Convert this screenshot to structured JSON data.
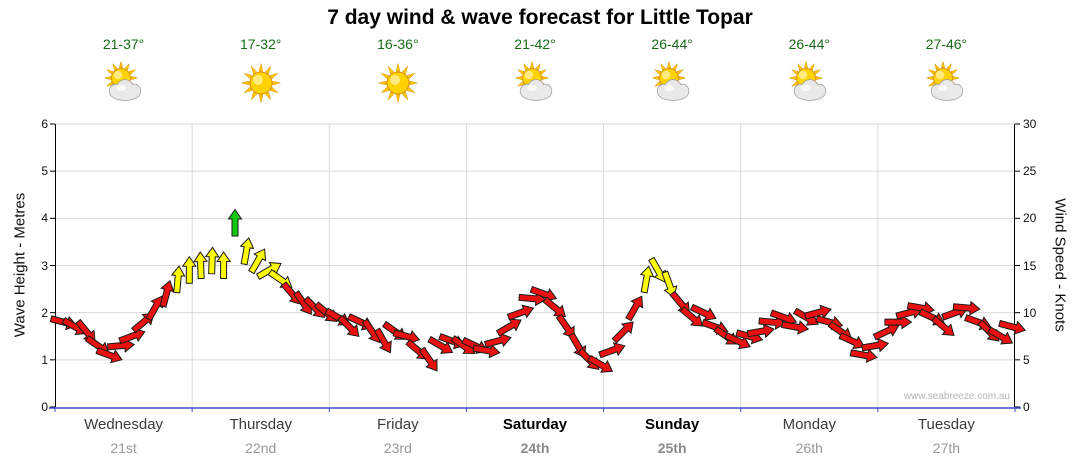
{
  "watermark": "www.seabreeze.com.au",
  "colors": {
    "background": "#ffffff",
    "title_text": "#000000",
    "temperature_text": "#176b17",
    "day_label_text": "#3c3c3c",
    "weekend_label_text": "#000000",
    "date_label_text": "#979797",
    "axis_text": "#111111",
    "gridline": "#d9d9d9",
    "axis_line": "#000000",
    "baseline": "#3d49cf",
    "watermark_text": "#b5b5b5",
    "sun": "#ffd200",
    "sun_rays": "#ffc400",
    "cloud": "#e9e9e9",
    "cloud_outline": "#9a9a9a"
  },
  "chart_data": {
    "type": "scatter",
    "marker": "wind-arrow",
    "title": "7 day wind & wave forecast for Little Topar",
    "xlabel": "",
    "ylabel_left": "Wave Height - Metres",
    "ylabel_right": "Wind Speed - Knots",
    "ylim_left": [
      0,
      6
    ],
    "ylim_right": [
      0,
      30
    ],
    "yticks_left": [
      0,
      1,
      2,
      3,
      4,
      5,
      6
    ],
    "yticks_right": [
      0,
      5,
      10,
      15,
      20,
      25,
      30
    ],
    "grid": true,
    "legend": "none",
    "hours": [
      1,
      3,
      5,
      7,
      9,
      11,
      13,
      15,
      17,
      19,
      21,
      23
    ],
    "speed_colors": {
      "red": "#e81010",
      "yellow": "#ffff00",
      "green": "#12c912",
      "yellow_from_knots": 13,
      "green_from_knots": 18
    },
    "days": [
      {
        "label": "Wednesday",
        "date": "21st",
        "temps": "21-37°",
        "icon": "sun-cloud",
        "weekend": false,
        "wind_knots": [
          9,
          8.5,
          8,
          6.5,
          5.5,
          6.5,
          7.5,
          9,
          10.5,
          12,
          13.5,
          14.5
        ],
        "wind_dir_deg": [
          15,
          30,
          50,
          35,
          20,
          -5,
          -20,
          -40,
          -60,
          -75,
          -85,
          -90
        ]
      },
      {
        "label": "Thursday",
        "date": "22nd",
        "temps": "17-32°",
        "icon": "sun",
        "weekend": false,
        "wind_knots": [
          15,
          15.5,
          15,
          19.5,
          16.5,
          15.5,
          14.5,
          13.5,
          12,
          11,
          10.5,
          10
        ],
        "wind_dir_deg": [
          -92,
          -88,
          -90,
          -90,
          -80,
          -60,
          -30,
          35,
          50,
          55,
          45,
          40
        ]
      },
      {
        "label": "Friday",
        "date": "23rd",
        "temps": "16-36°",
        "icon": "sun",
        "weekend": false,
        "wind_knots": [
          9.5,
          8.5,
          9,
          8,
          7,
          8,
          7.5,
          6,
          5,
          6.5,
          7,
          6.5
        ],
        "wind_dir_deg": [
          30,
          45,
          25,
          55,
          60,
          35,
          15,
          40,
          55,
          30,
          20,
          35
        ]
      },
      {
        "label": "Saturday",
        "date": "24th",
        "temps": "21-42°",
        "icon": "sun-cloud",
        "weekend": true,
        "wind_knots": [
          6.5,
          6,
          7,
          8.5,
          10,
          11.5,
          12,
          10.5,
          8.5,
          6.5,
          5,
          4.5
        ],
        "wind_dir_deg": [
          25,
          10,
          -15,
          -30,
          -20,
          5,
          20,
          40,
          55,
          60,
          45,
          30
        ]
      },
      {
        "label": "Sunday",
        "date": "25th",
        "temps": "26-44°",
        "icon": "sun-cloud",
        "weekend": true,
        "wind_knots": [
          6,
          8,
          10.5,
          13.5,
          14.5,
          13,
          11,
          9.5,
          10,
          8.5,
          7.5,
          7
        ],
        "wind_dir_deg": [
          -20,
          -45,
          -60,
          -80,
          60,
          70,
          50,
          40,
          25,
          20,
          35,
          25
        ]
      },
      {
        "label": "Monday",
        "date": "26th",
        "temps": "26-44°",
        "icon": "sun-cloud",
        "weekend": false,
        "wind_knots": [
          7.5,
          8,
          9,
          9.5,
          8.5,
          9.5,
          10,
          9,
          8,
          7,
          5.5,
          6.5
        ],
        "wind_dir_deg": [
          15,
          -10,
          5,
          20,
          10,
          30,
          -15,
          15,
          35,
          25,
          10,
          -10
        ]
      },
      {
        "label": "Tuesday",
        "date": "27th",
        "temps": "27-46°",
        "icon": "sun-cloud",
        "weekend": false,
        "wind_knots": [
          8,
          9,
          10,
          10.5,
          9.5,
          8.5,
          10,
          10.5,
          9,
          8,
          7.5,
          8.5
        ],
        "wind_dir_deg": [
          -25,
          0,
          -15,
          10,
          25,
          40,
          -20,
          5,
          20,
          45,
          30,
          15
        ]
      }
    ]
  }
}
